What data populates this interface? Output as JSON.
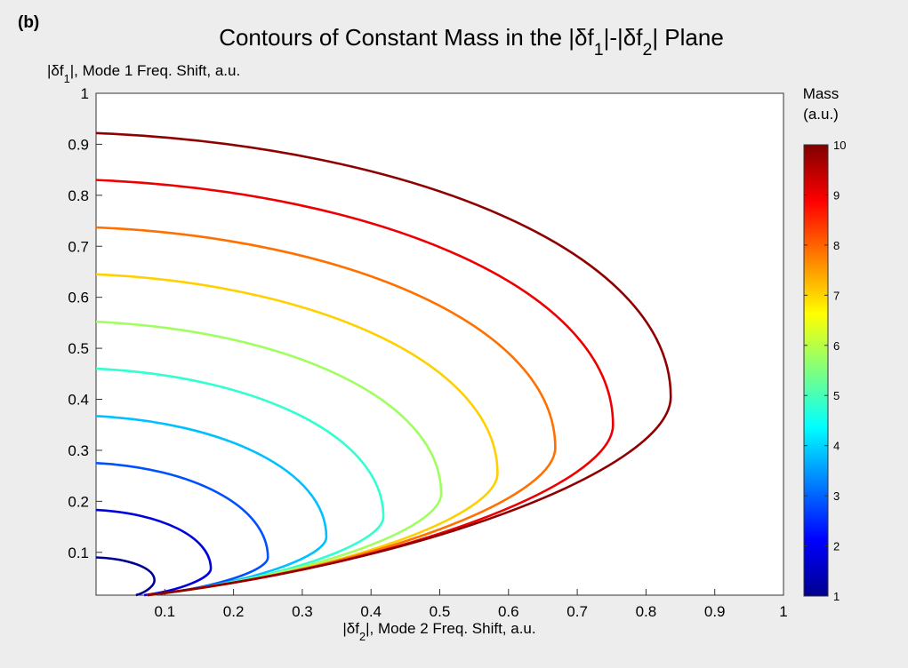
{
  "panel_label": "(b)",
  "chart_data": {
    "type": "line",
    "title": {
      "parts": [
        {
          "t": "Contours of Constant Mass in the |δf"
        },
        {
          "t": "1",
          "sub": true
        },
        {
          "t": "|-|δf"
        },
        {
          "t": "2",
          "sub": true
        },
        {
          "t": "| Plane"
        }
      ]
    },
    "ylabel": {
      "parts": [
        {
          "t": "|δf"
        },
        {
          "t": "1",
          "sub": true
        },
        {
          "t": "|, Mode 1 Freq. Shift, a.u."
        }
      ]
    },
    "xlabel": {
      "parts": [
        {
          "t": "|δf"
        },
        {
          "t": "2",
          "sub": true
        },
        {
          "t": "|, Mode 2 Freq. Shift, a.u."
        }
      ]
    },
    "xlim": [
      0,
      1
    ],
    "ylim": [
      0.016,
      1
    ],
    "xticks": [
      "0.1",
      "0.2",
      "0.3",
      "0.4",
      "0.5",
      "0.6",
      "0.7",
      "0.8",
      "0.9",
      "1"
    ],
    "yticks": [
      "0.1",
      "0.2",
      "0.3",
      "0.4",
      "0.5",
      "0.6",
      "0.7",
      "0.8",
      "0.9",
      "1"
    ],
    "grid": false,
    "colorbar": {
      "title_line1": "Mass",
      "title_line2": "(a.u.)",
      "ticks": [
        "1",
        "2",
        "3",
        "4",
        "5",
        "6",
        "7",
        "8",
        "9",
        "10"
      ],
      "range": [
        1,
        10
      ],
      "colormap": "jet"
    },
    "series": [
      {
        "mass": 1,
        "color": "#00008f",
        "x_max": 0.085,
        "y_at_x0": 0.09,
        "y_at_tip": 0.045,
        "y_bottom_x": 0.058
      },
      {
        "mass": 2,
        "color": "#0000df",
        "x_max": 0.167,
        "y_at_x0": 0.183,
        "y_at_tip": 0.068,
        "y_bottom_x": 0.07
      },
      {
        "mass": 3,
        "color": "#0050ff",
        "x_max": 0.25,
        "y_at_x0": 0.275,
        "y_at_tip": 0.09,
        "y_bottom_x": 0.075
      },
      {
        "mass": 4,
        "color": "#00c0ff",
        "x_max": 0.335,
        "y_at_x0": 0.367,
        "y_at_tip": 0.13,
        "y_bottom_x": 0.075
      },
      {
        "mass": 5,
        "color": "#30ffcf",
        "x_max": 0.418,
        "y_at_x0": 0.46,
        "y_at_tip": 0.17,
        "y_bottom_x": 0.075
      },
      {
        "mass": 6,
        "color": "#a0ff60",
        "x_max": 0.502,
        "y_at_x0": 0.552,
        "y_at_tip": 0.215,
        "y_bottom_x": 0.075
      },
      {
        "mass": 7,
        "color": "#ffd000",
        "x_max": 0.584,
        "y_at_x0": 0.645,
        "y_at_tip": 0.255,
        "y_bottom_x": 0.075
      },
      {
        "mass": 8,
        "color": "#ff7000",
        "x_max": 0.668,
        "y_at_x0": 0.737,
        "y_at_tip": 0.305,
        "y_bottom_x": 0.075
      },
      {
        "mass": 9,
        "color": "#ef0000",
        "x_max": 0.752,
        "y_at_x0": 0.83,
        "y_at_tip": 0.35,
        "y_bottom_x": 0.075
      },
      {
        "mass": 10,
        "color": "#8f0000",
        "x_max": 0.836,
        "y_at_x0": 0.922,
        "y_at_tip": 0.405,
        "y_bottom_x": 0.075
      }
    ]
  }
}
